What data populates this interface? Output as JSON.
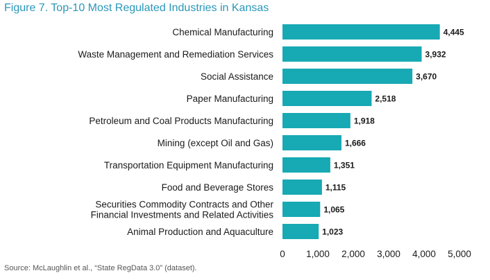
{
  "figure_label": "Figure 7.",
  "title": "Top-10 Most Regulated Industries in Kansas",
  "source": "Source: McLaughlin et al., “State RegData 3.0” (dataset).",
  "colors": {
    "bar": "#17a9b4",
    "title": "#2a97b8",
    "label": "#1a1a1a"
  },
  "chart_data": {
    "type": "bar",
    "orientation": "horizontal",
    "title": "Top-10 Most Regulated Industries in Kansas",
    "categories": [
      [
        "Chemical Manufacturing"
      ],
      [
        "Waste Management and Remediation Services"
      ],
      [
        "Social Assistance"
      ],
      [
        "Paper Manufacturing"
      ],
      [
        "Petroleum and Coal Products Manufacturing"
      ],
      [
        "Mining (except Oil and Gas)"
      ],
      [
        "Transportation Equipment Manufacturing"
      ],
      [
        "Food and Beverage Stores"
      ],
      [
        "Securities Commodity Contracts and Other",
        "Financial Investments and Related Activities"
      ],
      [
        "Animal Production and Aquaculture"
      ]
    ],
    "values": [
      4445,
      3932,
      3670,
      2518,
      1918,
      1666,
      1351,
      1115,
      1065,
      1023
    ],
    "value_labels": [
      "4,445",
      "3,932",
      "3,670",
      "2,518",
      "1,918",
      "1,666",
      "1,351",
      "1,115",
      "1,065",
      "1,023"
    ],
    "x_ticks": [
      "0",
      "1,000",
      "2,000",
      "3,000",
      "4,000",
      "5,000"
    ],
    "xlim": [
      0,
      5000
    ],
    "grid": false,
    "legend": "none"
  }
}
